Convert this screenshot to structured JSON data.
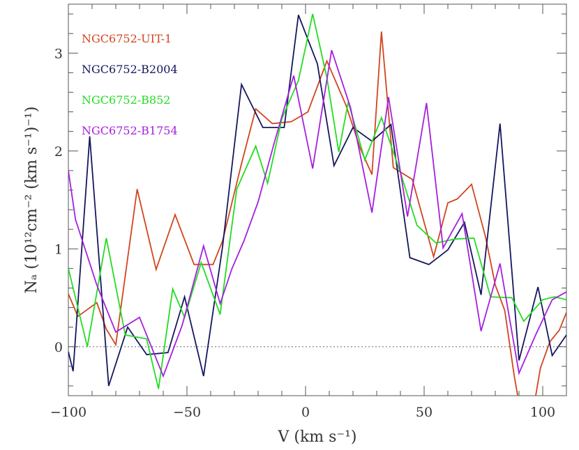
{
  "chart_data": {
    "type": "line",
    "xlabel": "V (km s⁻¹)",
    "ylabel": "Nₐ (10¹²cm⁻² (km s⁻¹)⁻¹)",
    "xlim": [
      -100,
      110
    ],
    "ylim": [
      -0.5,
      3.5
    ],
    "x_ticks": [
      -100,
      -50,
      0,
      50,
      100
    ],
    "x_tick_labels": [
      "−100",
      "−50",
      "0",
      "50",
      "100"
    ],
    "y_ticks": [
      0,
      1,
      2,
      3
    ],
    "y_tick_labels": [
      "0",
      "1",
      "2",
      "3"
    ],
    "zero_line": true,
    "grid": false,
    "legend_position": "top-left",
    "series": [
      {
        "name": "NGC6752-UIT-1",
        "color": "#d2451e",
        "x": [
          -100,
          -96,
          -88,
          -84,
          -80,
          -71,
          -63,
          -55,
          -47,
          -39,
          -35,
          -27,
          -21,
          -14,
          -6,
          1,
          9,
          17,
          23,
          28,
          32,
          37,
          45,
          54,
          60,
          64,
          70,
          76,
          80,
          84,
          88,
          92,
          96,
          99,
          103,
          107,
          110
        ],
        "y": [
          0.54,
          0.31,
          0.45,
          0.18,
          0.02,
          1.61,
          0.79,
          1.35,
          0.84,
          0.84,
          1.08,
          1.87,
          2.43,
          2.28,
          2.3,
          2.4,
          2.92,
          2.47,
          2.03,
          1.76,
          3.22,
          1.83,
          1.71,
          0.92,
          1.47,
          1.51,
          1.66,
          1.11,
          0.63,
          0.37,
          -0.3,
          -0.85,
          -0.65,
          -0.22,
          0.05,
          0.17,
          0.35
        ]
      },
      {
        "name": "NGC6752-B2004",
        "color": "#14175e",
        "x": [
          -100,
          -98,
          -91,
          -83,
          -75,
          -67,
          -58,
          -51,
          -43,
          -35,
          -27,
          -18,
          -9,
          -3,
          5,
          12,
          20,
          28,
          36,
          44,
          52,
          60,
          67,
          74,
          82,
          90,
          98,
          104,
          110
        ],
        "y": [
          -0.05,
          -0.25,
          2.15,
          -0.4,
          0.2,
          -0.08,
          -0.06,
          0.51,
          -0.3,
          1.02,
          2.68,
          2.24,
          2.24,
          3.39,
          2.89,
          1.85,
          2.24,
          2.1,
          2.27,
          0.91,
          0.84,
          0.99,
          1.27,
          0.53,
          2.28,
          -0.14,
          0.61,
          -0.09,
          0.12
        ]
      },
      {
        "name": "NGC6752-B852",
        "color": "#22dd22",
        "x": [
          -100,
          -92,
          -84,
          -76,
          -67,
          -62,
          -56,
          -51,
          -44,
          -36,
          -29,
          -21,
          -16,
          -10,
          -3,
          3,
          9,
          14,
          18,
          25,
          32,
          40,
          47,
          55,
          63,
          71,
          78,
          87,
          92,
          100,
          105,
          110
        ],
        "y": [
          0.8,
          0.0,
          1.11,
          0.12,
          0.08,
          -0.43,
          0.59,
          0.3,
          0.86,
          0.33,
          1.61,
          2.05,
          1.67,
          2.33,
          2.72,
          3.4,
          2.75,
          1.99,
          2.5,
          1.91,
          2.34,
          1.78,
          1.24,
          1.06,
          1.1,
          1.11,
          0.51,
          0.5,
          0.26,
          0.48,
          0.51,
          0.48
        ]
      },
      {
        "name": "NGC6752-B1754",
        "color": "#a51fde",
        "x": [
          -100,
          -97,
          -88,
          -80,
          -70,
          -60,
          -52,
          -43,
          -36,
          -31,
          -26,
          -20,
          -13,
          -5,
          3,
          11,
          19,
          28,
          35,
          43,
          51,
          58,
          66,
          74,
          82,
          90,
          97,
          104,
          110
        ],
        "y": [
          1.8,
          1.3,
          0.63,
          0.15,
          0.3,
          -0.3,
          0.22,
          1.03,
          0.44,
          0.8,
          1.08,
          1.48,
          2.1,
          2.77,
          1.82,
          3.03,
          2.44,
          1.37,
          2.55,
          1.33,
          2.49,
          1.01,
          1.36,
          0.16,
          0.85,
          -0.27,
          0.12,
          0.48,
          0.56
        ]
      }
    ]
  }
}
